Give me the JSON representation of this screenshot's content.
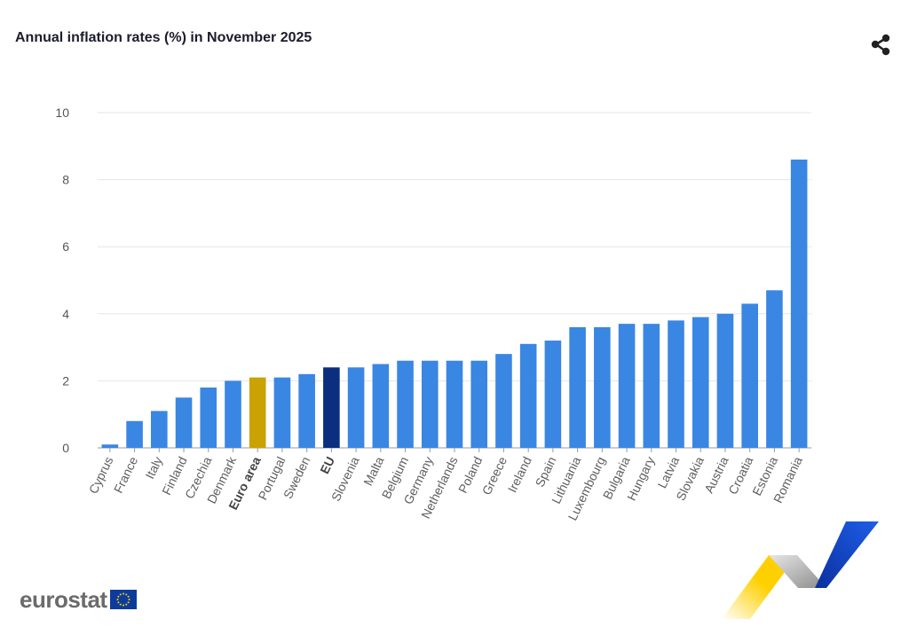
{
  "title": "Annual inflation rates (%) in November 2025",
  "brand": {
    "name": "eurostat",
    "logo": "eu-flag-icon"
  },
  "icons": {
    "share": "share-icon"
  },
  "colors": {
    "bar": "#3a86e3",
    "euro_area": "#caa203",
    "eu": "#0b2f7e",
    "grid": "#e6e6e6",
    "axis_text": "#555555"
  },
  "chart_data": {
    "type": "bar",
    "title": "Annual inflation rates (%) in November 2025",
    "xlabel": "",
    "ylabel": "",
    "ylim": [
      0,
      10
    ],
    "yticks": [
      0,
      2,
      4,
      6,
      8,
      10
    ],
    "grid": true,
    "legend": "none",
    "categories": [
      "Cyprus",
      "France",
      "Italy",
      "Finland",
      "Czechia",
      "Denmark",
      "Euro area",
      "Portugal",
      "Sweden",
      "EU",
      "Slovenia",
      "Malta",
      "Belgium",
      "Germany",
      "Netherlands",
      "Poland",
      "Greece",
      "Ireland",
      "Spain",
      "Lithuania",
      "Luxembourg",
      "Bulgaria",
      "Hungary",
      "Latvia",
      "Slovakia",
      "Austria",
      "Croatia",
      "Estonia",
      "Romania"
    ],
    "values": [
      0.1,
      0.8,
      1.1,
      1.5,
      1.8,
      2.0,
      2.1,
      2.1,
      2.2,
      2.4,
      2.4,
      2.5,
      2.6,
      2.6,
      2.6,
      2.6,
      2.8,
      3.1,
      3.2,
      3.6,
      3.6,
      3.7,
      3.7,
      3.8,
      3.9,
      4.0,
      4.3,
      4.7,
      8.6
    ],
    "highlighted": {
      "Euro area": "#caa203",
      "EU": "#0b2f7e"
    },
    "bold_categories": [
      "Euro area",
      "EU"
    ]
  }
}
